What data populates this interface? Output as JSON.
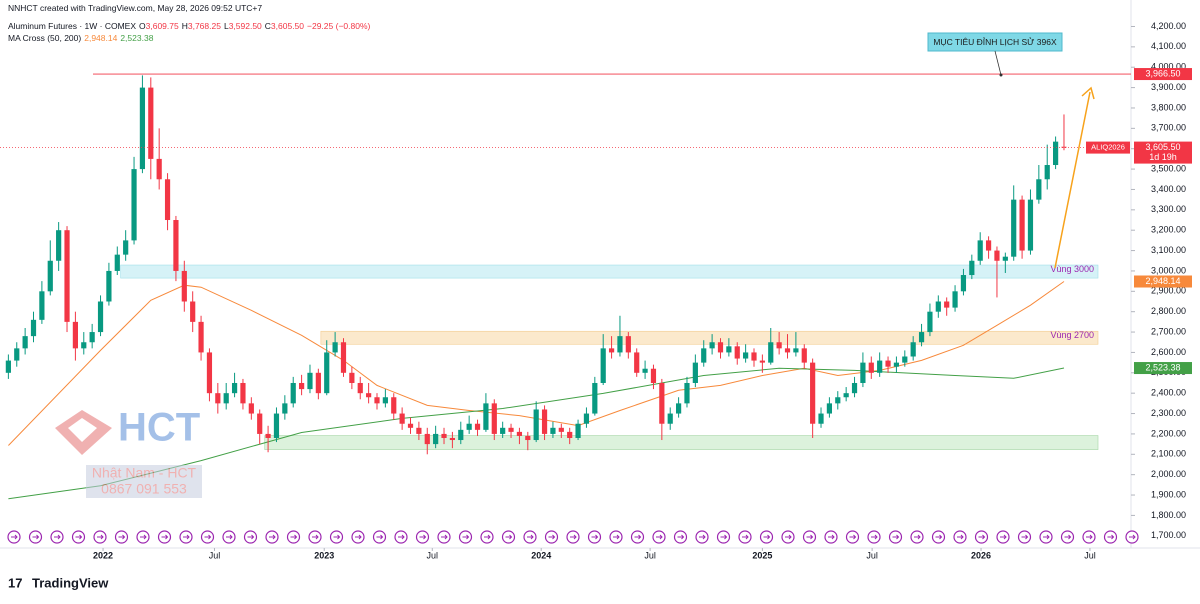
{
  "header": {
    "created": "NNHCT created with TradingView.com, May 28, 2026 09:52 UTC+7",
    "symbol": "Aluminum Futures · 1W · COMEX",
    "ohlc": [
      {
        "label": "O",
        "value": "3,609.75"
      },
      {
        "label": "H",
        "value": "3,768.25"
      },
      {
        "label": "L",
        "value": "3,592.50"
      },
      {
        "label": "C",
        "value": "3,605.50"
      }
    ],
    "change": "−29.25 (−0.80%)",
    "indicator": "MA Cross (50, 200)"
  },
  "chart_data": {
    "type": "candlestick",
    "up_color": "#089981",
    "down_color": "#f23645",
    "xlim": [
      -1,
      134
    ],
    "ylim": [
      1640,
      4330
    ],
    "xticks": [
      {
        "value": 11.3,
        "label": "2022"
      },
      {
        "value": 24.6,
        "label": "Jul"
      },
      {
        "value": 37.7,
        "label": "2023"
      },
      {
        "value": 50.6,
        "label": "Jul"
      },
      {
        "value": 63.6,
        "label": "2024"
      },
      {
        "value": 76.6,
        "label": "Jul"
      },
      {
        "value": 90,
        "label": "2025"
      },
      {
        "value": 103.1,
        "label": "Jul"
      },
      {
        "value": 116.1,
        "label": "2026"
      },
      {
        "value": 129.1,
        "label": "Jul"
      }
    ],
    "yticks": [
      {
        "value": 1700,
        "label": "1,700.00"
      },
      {
        "value": 1800,
        "label": "1,800.00"
      },
      {
        "value": 1900,
        "label": "1,900.00"
      },
      {
        "value": 2000,
        "label": "2,000.00"
      },
      {
        "value": 2100,
        "label": "2,100.00"
      },
      {
        "value": 2200,
        "label": "2,200.00"
      },
      {
        "value": 2300,
        "label": "2,300.00"
      },
      {
        "value": 2400,
        "label": "2,400.00"
      },
      {
        "value": 2500,
        "label": "2,500.00"
      },
      {
        "value": 2600,
        "label": "2,600.00"
      },
      {
        "value": 2700,
        "label": "2,700.00"
      },
      {
        "value": 2800,
        "label": "2,800.00"
      },
      {
        "value": 2900,
        "label": "2,900.00"
      },
      {
        "value": 3000,
        "label": "3,000.00"
      },
      {
        "value": 3100,
        "label": "3,100.00"
      },
      {
        "value": 3200,
        "label": "3,200.00"
      },
      {
        "value": 3300,
        "label": "3,300.00"
      },
      {
        "value": 3400,
        "label": "3,400.00"
      },
      {
        "value": 3500,
        "label": "3,500.00"
      },
      {
        "value": 3600,
        "label": "3,600.00"
      },
      {
        "value": 3700,
        "label": "3,700.00"
      },
      {
        "value": 3800,
        "label": "3,800.00"
      },
      {
        "value": 3900,
        "label": "3,900.00"
      },
      {
        "value": 4000,
        "label": "4,000.00"
      },
      {
        "value": 4100,
        "label": "4,100.00"
      },
      {
        "value": 4200,
        "label": "4,200.00"
      }
    ],
    "candles": [
      [
        2500,
        2590,
        2470,
        2560
      ],
      [
        2560,
        2650,
        2530,
        2620
      ],
      [
        2620,
        2720,
        2590,
        2680
      ],
      [
        2680,
        2800,
        2650,
        2760
      ],
      [
        2760,
        2950,
        2740,
        2900
      ],
      [
        2900,
        3150,
        2880,
        3050
      ],
      [
        3050,
        3240,
        3000,
        3200
      ],
      [
        3200,
        3220,
        2700,
        2750
      ],
      [
        2750,
        2800,
        2560,
        2620
      ],
      [
        2620,
        2700,
        2590,
        2650
      ],
      [
        2650,
        2740,
        2620,
        2700
      ],
      [
        2700,
        2880,
        2680,
        2850
      ],
      [
        2850,
        3040,
        2830,
        3000
      ],
      [
        3000,
        3120,
        2980,
        3080
      ],
      [
        3080,
        3200,
        3050,
        3150
      ],
      [
        3150,
        3560,
        3130,
        3500
      ],
      [
        3500,
        3960,
        3480,
        3900
      ],
      [
        3900,
        3950,
        3450,
        3550
      ],
      [
        3550,
        3700,
        3400,
        3450
      ],
      [
        3450,
        3480,
        3200,
        3250
      ],
      [
        3250,
        3270,
        2950,
        3000
      ],
      [
        3000,
        3050,
        2800,
        2850
      ],
      [
        2850,
        2900,
        2700,
        2750
      ],
      [
        2750,
        2780,
        2560,
        2600
      ],
      [
        2600,
        2620,
        2360,
        2400
      ],
      [
        2400,
        2450,
        2300,
        2350
      ],
      [
        2350,
        2450,
        2320,
        2400
      ],
      [
        2400,
        2500,
        2380,
        2450
      ],
      [
        2450,
        2470,
        2320,
        2350
      ],
      [
        2350,
        2380,
        2270,
        2300
      ],
      [
        2300,
        2320,
        2150,
        2200
      ],
      [
        2200,
        2240,
        2110,
        2180
      ],
      [
        2180,
        2330,
        2160,
        2300
      ],
      [
        2300,
        2390,
        2270,
        2350
      ],
      [
        2350,
        2480,
        2330,
        2450
      ],
      [
        2450,
        2490,
        2390,
        2420
      ],
      [
        2420,
        2540,
        2400,
        2500
      ],
      [
        2500,
        2520,
        2370,
        2400
      ],
      [
        2400,
        2660,
        2390,
        2600
      ],
      [
        2600,
        2700,
        2580,
        2650
      ],
      [
        2650,
        2670,
        2480,
        2500
      ],
      [
        2500,
        2530,
        2420,
        2450
      ],
      [
        2450,
        2480,
        2370,
        2400
      ],
      [
        2400,
        2450,
        2350,
        2380
      ],
      [
        2380,
        2400,
        2320,
        2350
      ],
      [
        2350,
        2420,
        2330,
        2380
      ],
      [
        2380,
        2400,
        2270,
        2300
      ],
      [
        2300,
        2330,
        2220,
        2250
      ],
      [
        2250,
        2280,
        2200,
        2230
      ],
      [
        2230,
        2260,
        2170,
        2200
      ],
      [
        2200,
        2230,
        2100,
        2150
      ],
      [
        2150,
        2240,
        2130,
        2200
      ],
      [
        2200,
        2230,
        2150,
        2180
      ],
      [
        2180,
        2210,
        2130,
        2170
      ],
      [
        2170,
        2260,
        2150,
        2220
      ],
      [
        2220,
        2290,
        2200,
        2250
      ],
      [
        2250,
        2270,
        2190,
        2220
      ],
      [
        2220,
        2400,
        2210,
        2350
      ],
      [
        2350,
        2370,
        2170,
        2200
      ],
      [
        2200,
        2260,
        2180,
        2230
      ],
      [
        2230,
        2250,
        2180,
        2210
      ],
      [
        2210,
        2230,
        2150,
        2190
      ],
      [
        2190,
        2210,
        2120,
        2170
      ],
      [
        2170,
        2360,
        2160,
        2320
      ],
      [
        2320,
        2340,
        2170,
        2200
      ],
      [
        2200,
        2260,
        2180,
        2230
      ],
      [
        2230,
        2250,
        2180,
        2210
      ],
      [
        2210,
        2230,
        2150,
        2180
      ],
      [
        2180,
        2270,
        2170,
        2250
      ],
      [
        2250,
        2330,
        2230,
        2300
      ],
      [
        2300,
        2480,
        2290,
        2450
      ],
      [
        2450,
        2690,
        2440,
        2620
      ],
      [
        2620,
        2680,
        2570,
        2600
      ],
      [
        2600,
        2780,
        2580,
        2680
      ],
      [
        2680,
        2700,
        2570,
        2600
      ],
      [
        2600,
        2620,
        2480,
        2500
      ],
      [
        2500,
        2560,
        2470,
        2520
      ],
      [
        2520,
        2540,
        2420,
        2450
      ],
      [
        2450,
        2470,
        2170,
        2250
      ],
      [
        2250,
        2330,
        2220,
        2300
      ],
      [
        2300,
        2380,
        2280,
        2350
      ],
      [
        2350,
        2480,
        2330,
        2450
      ],
      [
        2450,
        2590,
        2430,
        2550
      ],
      [
        2550,
        2660,
        2530,
        2620
      ],
      [
        2620,
        2690,
        2590,
        2650
      ],
      [
        2650,
        2670,
        2570,
        2600
      ],
      [
        2600,
        2670,
        2580,
        2630
      ],
      [
        2630,
        2650,
        2540,
        2570
      ],
      [
        2570,
        2640,
        2550,
        2600
      ],
      [
        2600,
        2620,
        2530,
        2560
      ],
      [
        2560,
        2590,
        2500,
        2550
      ],
      [
        2550,
        2720,
        2540,
        2650
      ],
      [
        2650,
        2700,
        2590,
        2620
      ],
      [
        2620,
        2690,
        2570,
        2600
      ],
      [
        2600,
        2700,
        2580,
        2620
      ],
      [
        2620,
        2640,
        2520,
        2550
      ],
      [
        2550,
        2570,
        2180,
        2250
      ],
      [
        2250,
        2330,
        2230,
        2300
      ],
      [
        2300,
        2380,
        2280,
        2350
      ],
      [
        2350,
        2410,
        2320,
        2380
      ],
      [
        2380,
        2430,
        2360,
        2400
      ],
      [
        2400,
        2480,
        2380,
        2450
      ],
      [
        2450,
        2600,
        2430,
        2550
      ],
      [
        2550,
        2580,
        2470,
        2500
      ],
      [
        2500,
        2600,
        2480,
        2560
      ],
      [
        2560,
        2580,
        2500,
        2530
      ],
      [
        2530,
        2580,
        2500,
        2550
      ],
      [
        2550,
        2610,
        2530,
        2580
      ],
      [
        2580,
        2680,
        2560,
        2650
      ],
      [
        2650,
        2740,
        2630,
        2700
      ],
      [
        2700,
        2840,
        2680,
        2800
      ],
      [
        2800,
        2880,
        2770,
        2850
      ],
      [
        2850,
        2870,
        2780,
        2820
      ],
      [
        2820,
        2930,
        2800,
        2900
      ],
      [
        2900,
        3010,
        2880,
        2980
      ],
      [
        2980,
        3080,
        2960,
        3050
      ],
      [
        3050,
        3190,
        3030,
        3150
      ],
      [
        3150,
        3170,
        3060,
        3100
      ],
      [
        3100,
        3120,
        2870,
        3050
      ],
      [
        3050,
        3090,
        2990,
        3070
      ],
      [
        3070,
        3420,
        3050,
        3350
      ],
      [
        3350,
        3370,
        3060,
        3100
      ],
      [
        3100,
        3400,
        3080,
        3350
      ],
      [
        3350,
        3520,
        3330,
        3450
      ],
      [
        3450,
        3620,
        3400,
        3520
      ],
      [
        3520,
        3660,
        3500,
        3634.75
      ],
      [
        3609.75,
        3768.25,
        3592.5,
        3605.5
      ]
    ],
    "series": [
      {
        "name": "MA 50",
        "color": "#f7893b",
        "x": [
          0,
          11,
          17,
          21,
          23,
          29,
          35,
          40,
          44,
          50,
          55,
          61,
          68,
          73,
          80,
          85,
          90,
          95,
          99,
          104,
          109,
          114,
          118,
          122,
          126
        ],
        "values": [
          2143,
          2610,
          2856,
          2930,
          2920,
          2807,
          2684,
          2561,
          2438,
          2340,
          2315,
          2290,
          2241,
          2315,
          2414,
          2438,
          2487,
          2522,
          2487,
          2512,
          2561,
          2635,
          2733,
          2832,
          2948.14
        ],
        "value_labels": [
          null,
          null,
          null,
          null,
          null,
          null,
          null,
          null,
          null,
          null,
          null,
          null,
          null,
          null,
          null,
          null,
          null,
          null,
          null,
          null,
          null,
          null,
          null,
          null,
          "2,948.14"
        ]
      },
      {
        "name": "MA 200",
        "color": "#43a047",
        "x": [
          0,
          11,
          23,
          35,
          47,
          59,
          71,
          83,
          92,
          101,
          113,
          120,
          126
        ],
        "values": [
          1882,
          1946,
          2069,
          2207,
          2276,
          2325,
          2399,
          2487,
          2522,
          2512,
          2487,
          2473,
          2523.38
        ],
        "value_labels": [
          null,
          null,
          null,
          null,
          null,
          null,
          null,
          null,
          null,
          null,
          null,
          null,
          "2,523.38"
        ]
      }
    ],
    "zones": [
      {
        "name": "Vùng 3000",
        "start": 13.4,
        "lo": 2965,
        "hi": 3029,
        "color": "#d6f2f7",
        "border": "#9fdfe9",
        "text_color": "#9c27b0"
      },
      {
        "name": "Vùng 2700",
        "start": 37.3,
        "lo": 2640,
        "hi": 2704,
        "color": "#fbe9cc",
        "border": "#f3cc90",
        "text_color": "#9c27b0"
      },
      {
        "start": 30.6,
        "lo": 2123,
        "hi": 2192,
        "color": "#dcf2dc",
        "border": "#a5d6a7"
      }
    ],
    "hline": {
      "value": 3966.5,
      "label": "3,966.50",
      "color": "#f23645"
    },
    "last_price": {
      "value": 3605.5,
      "label": "3,605.50",
      "symbol": "ALIQ2026",
      "countdown": "1d 19h",
      "color": "#f23645"
    },
    "annotation": {
      "text": "MỤC TIÊU ĐỈNH LỊCH SỬ 396X"
    }
  },
  "watermark": {
    "logo": "HCT",
    "name": "Nhật Nam - HCT",
    "phone": "0867 091 553"
  },
  "brand": "TradingView"
}
